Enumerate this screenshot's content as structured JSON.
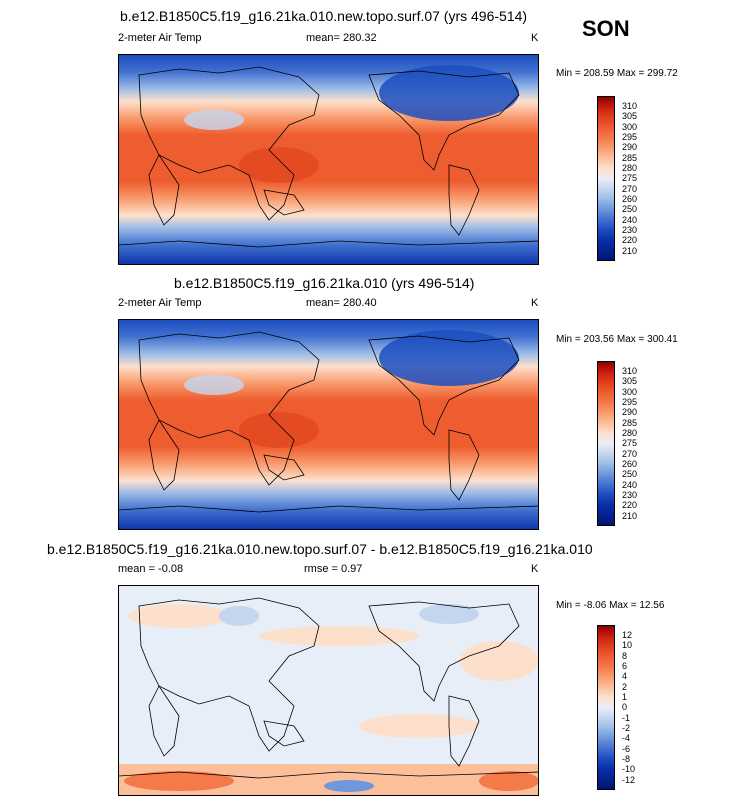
{
  "season": "SON",
  "panels": [
    {
      "title": "b.e12.B1850C5.f19_g16.21ka.010.new.topo.surf.07 (yrs 496-514)",
      "left_label": "2-meter Air Temp",
      "center_label": "mean= 280.32",
      "unit": "K",
      "minmax": "Min = 208.59 Max = 299.72"
    },
    {
      "title": "b.e12.B1850C5.f19_g16.21ka.010 (yrs 496-514)",
      "left_label": "2-meter Air Temp",
      "center_label": "mean= 280.40",
      "unit": "K",
      "minmax": "Min = 203.56 Max = 300.41"
    },
    {
      "title": "b.e12.B1850C5.f19_g16.21ka.010.new.topo.surf.07 - b.e12.B1850C5.f19_g16.21ka.010",
      "left_label": "mean =  -0.08",
      "center_label": "rmse =   0.97",
      "unit": "K",
      "minmax": "Min = -8.06 Max = 12.56"
    }
  ],
  "chart_data": [
    {
      "type": "heatmap",
      "title": "b.e12.B1850C5.f19_g16.21ka.010.new.topo.surf.07 (yrs 496-514)",
      "variable": "2-meter Air Temp",
      "units": "K",
      "mean": 280.32,
      "min": 208.59,
      "max": 299.72,
      "colorbar_levels": [
        "310",
        "305",
        "300",
        "295",
        "290",
        "285",
        "280",
        "275",
        "270",
        "260",
        "250",
        "240",
        "230",
        "220",
        "210"
      ],
      "colorbar_colors": [
        "#8b0000",
        "#c81e0f",
        "#e0401c",
        "#ee5d2f",
        "#f47a49",
        "#f99a6c",
        "#fcbf9c",
        "#fde0cc",
        "#e8eef8",
        "#c4d6ef",
        "#9cbce7",
        "#6f97dc",
        "#4271d0",
        "#1c4ec0",
        "#0a2fa8",
        "#001575"
      ]
    },
    {
      "type": "heatmap",
      "title": "b.e12.B1850C5.f19_g16.21ka.010 (yrs 496-514)",
      "variable": "2-meter Air Temp",
      "units": "K",
      "mean": 280.4,
      "min": 203.56,
      "max": 300.41,
      "colorbar_levels": [
        "310",
        "305",
        "300",
        "295",
        "290",
        "285",
        "280",
        "275",
        "270",
        "260",
        "250",
        "240",
        "230",
        "220",
        "210"
      ],
      "colorbar_colors": [
        "#8b0000",
        "#c81e0f",
        "#e0401c",
        "#ee5d2f",
        "#f47a49",
        "#f99a6c",
        "#fcbf9c",
        "#fde0cc",
        "#e8eef8",
        "#c4d6ef",
        "#9cbce7",
        "#6f97dc",
        "#4271d0",
        "#1c4ec0",
        "#0a2fa8",
        "#001575"
      ]
    },
    {
      "type": "heatmap",
      "title": "b.e12.B1850C5.f19_g16.21ka.010.new.topo.surf.07 - b.e12.B1850C5.f19_g16.21ka.010",
      "units": "K",
      "mean": -0.08,
      "rmse": 0.97,
      "min": -8.06,
      "max": 12.56,
      "colorbar_levels": [
        "12",
        "10",
        "8",
        "6",
        "4",
        "2",
        "1",
        "0",
        "-1",
        "-2",
        "-4",
        "-6",
        "-8",
        "-10",
        "-12"
      ],
      "colorbar_colors": [
        "#8b0000",
        "#c81e0f",
        "#e0401c",
        "#ee5d2f",
        "#f47a49",
        "#f99a6c",
        "#fcbf9c",
        "#fde0cc",
        "#e8eef8",
        "#c4d6ef",
        "#9cbce7",
        "#6f97dc",
        "#4271d0",
        "#1c4ec0",
        "#0a2fa8",
        "#001575"
      ]
    }
  ]
}
